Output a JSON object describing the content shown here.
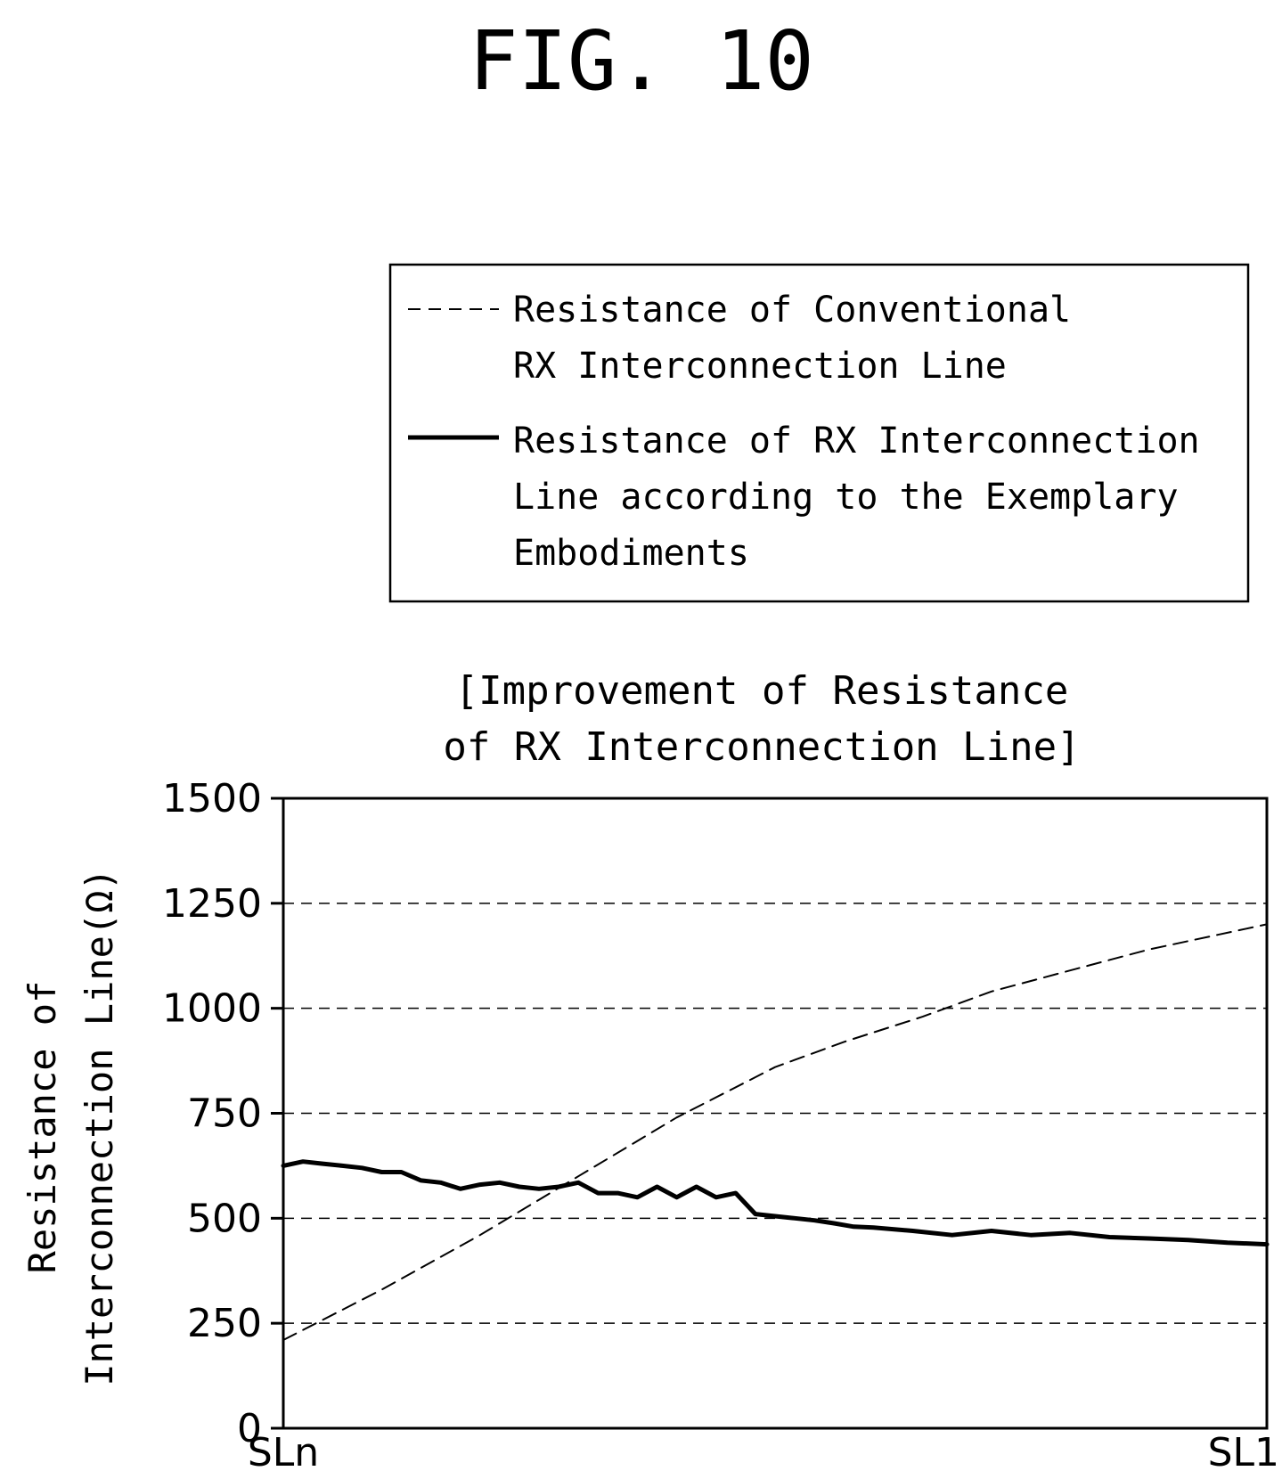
{
  "figure_label": "FIG. 10",
  "chart_data": {
    "type": "line",
    "title_lines": [
      "[Improvement of Resistance",
      "of RX Interconnection Line]"
    ],
    "ylabel_lines": [
      "Resistance of",
      "Interconnection Line(Ω)"
    ],
    "xlabel": "",
    "x_tick_labels": [
      "SLn",
      "SL1"
    ],
    "y_ticks": [
      0,
      250,
      500,
      750,
      1000,
      1250,
      1500
    ],
    "y_tick_labels": [
      "0",
      "250",
      "500",
      "750",
      "1000",
      "1250",
      "1500"
    ],
    "ylim": [
      0,
      1500
    ],
    "xlim": [
      0,
      100
    ],
    "grid": "horizontal dashed",
    "legend_position": "above plot, right",
    "legend": [
      {
        "style": "dashed",
        "lines": [
          "Resistance of Conventional",
          "RX Interconnection Line"
        ]
      },
      {
        "style": "solid",
        "lines": [
          "Resistance of RX Interconnection",
          "Line according to the Exemplary",
          "Embodiments"
        ]
      }
    ],
    "series": [
      {
        "style": "dashed",
        "x": [
          0,
          10,
          20,
          30,
          40,
          50,
          57,
          65,
          72,
          80,
          88,
          95,
          100
        ],
        "y": [
          210,
          330,
          460,
          600,
          740,
          860,
          920,
          980,
          1040,
          1090,
          1140,
          1175,
          1200
        ]
      },
      {
        "style": "solid",
        "x": [
          0,
          2,
          4,
          6,
          8,
          10,
          12,
          14,
          16,
          18,
          20,
          22,
          24,
          26,
          28,
          30,
          32,
          34,
          36,
          38,
          40,
          42,
          44,
          46,
          48,
          50,
          52,
          54,
          56,
          58,
          60,
          64,
          68,
          72,
          76,
          80,
          84,
          88,
          92,
          96,
          100
        ],
        "y": [
          625,
          635,
          630,
          625,
          620,
          610,
          610,
          590,
          585,
          570,
          580,
          585,
          575,
          570,
          575,
          585,
          560,
          560,
          550,
          575,
          550,
          575,
          550,
          560,
          510,
          505,
          500,
          495,
          488,
          480,
          478,
          470,
          460,
          470,
          460,
          465,
          455,
          452,
          448,
          442,
          438
        ]
      }
    ]
  }
}
